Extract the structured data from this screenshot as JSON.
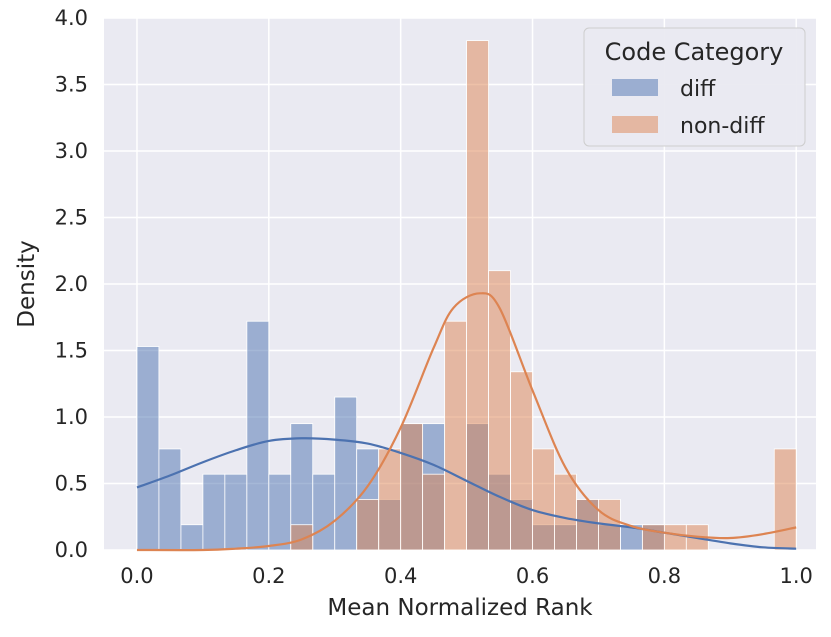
{
  "chart_data": {
    "type": "histogram",
    "xlabel": "Mean Normalized Rank",
    "ylabel": "Density",
    "xlim": [
      -0.05,
      1.03
    ],
    "ylim": [
      0,
      4.0
    ],
    "xticks": [
      0.0,
      0.2,
      0.4,
      0.6,
      0.8,
      1.0
    ],
    "xtick_labels": [
      "0.0",
      "0.2",
      "0.4",
      "0.6",
      "0.8",
      "1.0"
    ],
    "yticks": [
      0.0,
      0.5,
      1.0,
      1.5,
      2.0,
      2.5,
      3.0,
      3.5,
      4.0
    ],
    "ytick_labels": [
      "0.0",
      "0.5",
      "1.0",
      "1.5",
      "2.0",
      "2.5",
      "3.0",
      "3.5",
      "4.0"
    ],
    "grid": true,
    "bin_width": 0.0333,
    "bin_starts": [
      0.0,
      0.0333,
      0.0667,
      0.1,
      0.1333,
      0.1667,
      0.2,
      0.2333,
      0.2667,
      0.3,
      0.3333,
      0.3667,
      0.4,
      0.4333,
      0.4667,
      0.5,
      0.5333,
      0.5667,
      0.6,
      0.6333,
      0.6667,
      0.7,
      0.7333,
      0.7667,
      0.8,
      0.8333,
      0.8667,
      0.9,
      0.9333,
      0.9667
    ],
    "legend": {
      "title": "Code Category",
      "position": "upper right"
    },
    "series": [
      {
        "name": "diff",
        "color": "#4c72b0",
        "density": [
          1.53,
          0.76,
          0.19,
          0.57,
          0.57,
          1.72,
          0.57,
          0.95,
          0.57,
          1.15,
          0.76,
          0.38,
          0.95,
          0.95,
          0.0,
          0.95,
          0.57,
          0.38,
          0.19,
          0.19,
          0.38,
          0.19,
          0.19,
          0.19,
          0.0,
          0.0,
          0.0,
          0.0,
          0.0,
          0.0
        ],
        "kde_x": [
          0.0,
          0.05,
          0.1,
          0.15,
          0.2,
          0.25,
          0.3,
          0.35,
          0.4,
          0.45,
          0.5,
          0.55,
          0.6,
          0.65,
          0.7,
          0.75,
          0.8,
          0.85,
          0.9,
          0.95,
          1.0
        ],
        "kde_y": [
          0.47,
          0.56,
          0.66,
          0.75,
          0.82,
          0.84,
          0.83,
          0.8,
          0.73,
          0.64,
          0.52,
          0.4,
          0.3,
          0.24,
          0.2,
          0.17,
          0.13,
          0.09,
          0.05,
          0.02,
          0.01
        ]
      },
      {
        "name": "non-diff",
        "color": "#dd8452",
        "density": [
          0.0,
          0.0,
          0.0,
          0.0,
          0.0,
          0.0,
          0.0,
          0.19,
          0.0,
          0.0,
          0.38,
          0.76,
          0.95,
          0.57,
          1.72,
          3.83,
          2.1,
          1.34,
          0.76,
          0.57,
          0.38,
          0.38,
          0.0,
          0.19,
          0.19,
          0.19,
          0.0,
          0.0,
          0.0,
          0.76
        ],
        "kde_x": [
          0.0,
          0.1,
          0.15,
          0.2,
          0.25,
          0.3,
          0.35,
          0.4,
          0.45,
          0.48,
          0.52,
          0.55,
          0.6,
          0.65,
          0.7,
          0.75,
          0.8,
          0.85,
          0.9,
          0.95,
          1.0
        ],
        "kde_y": [
          0.0,
          0.0,
          0.01,
          0.03,
          0.08,
          0.22,
          0.48,
          0.92,
          1.52,
          1.82,
          1.93,
          1.82,
          1.2,
          0.62,
          0.3,
          0.18,
          0.13,
          0.1,
          0.09,
          0.12,
          0.17
        ]
      }
    ]
  }
}
